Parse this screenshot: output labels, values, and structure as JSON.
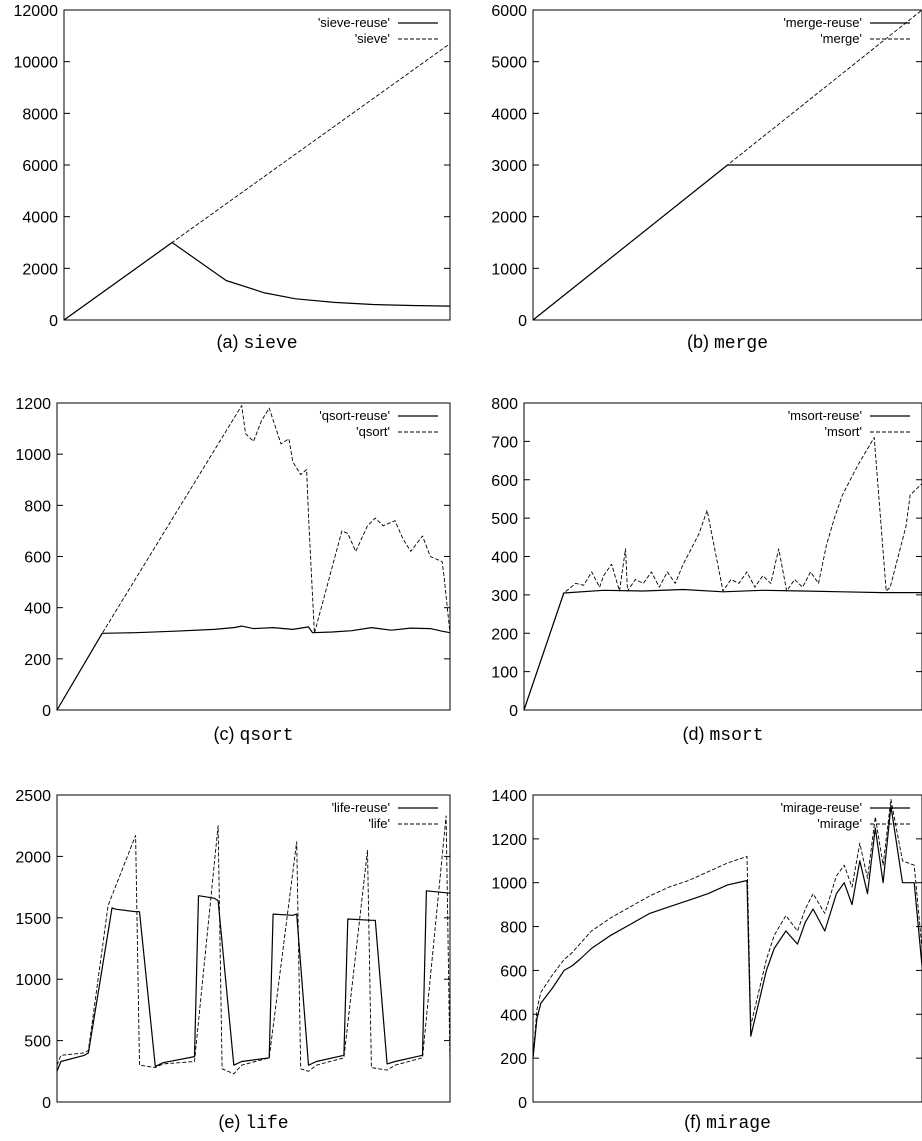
{
  "colors": {
    "background": "#ffffff",
    "axis": "#000000",
    "series": "#000000"
  },
  "chart_data": [
    {
      "id": "a",
      "type": "line",
      "caption_prefix": "(a)",
      "caption_name": "sieve",
      "title": "",
      "xlabel": "",
      "ylabel": "",
      "ylim": [
        0,
        12000
      ],
      "yticks": [
        "0",
        "2000",
        "4000",
        "6000",
        "8000",
        "10000",
        "12000"
      ],
      "xlim": [
        0,
        1
      ],
      "grid": false,
      "legend_position": "top-right",
      "series": [
        {
          "name": "'sieve-reuse'",
          "style": "solid",
          "x": [
            0,
            0.28,
            0.42,
            0.52,
            0.6,
            0.7,
            0.8,
            0.9,
            1.0
          ],
          "y": [
            0,
            3000,
            1530,
            1050,
            820,
            680,
            600,
            560,
            540
          ]
        },
        {
          "name": "'sieve'",
          "style": "dashed",
          "x": [
            0,
            0.28,
            1.0
          ],
          "y": [
            0,
            3000,
            10700
          ]
        }
      ]
    },
    {
      "id": "b",
      "type": "line",
      "caption_prefix": "(b)",
      "caption_name": "merge",
      "title": "",
      "xlabel": "",
      "ylabel": "",
      "ylim": [
        0,
        6000
      ],
      "yticks": [
        "0",
        "1000",
        "2000",
        "3000",
        "4000",
        "5000",
        "6000"
      ],
      "xlim": [
        0,
        1
      ],
      "grid": false,
      "legend_position": "top-right",
      "series": [
        {
          "name": "'merge-reuse'",
          "style": "solid",
          "x": [
            0,
            0.5,
            1.0
          ],
          "y": [
            0,
            3000,
            3000
          ]
        },
        {
          "name": "'merge'",
          "style": "dashed",
          "x": [
            0,
            1.0
          ],
          "y": [
            0,
            6000
          ]
        }
      ]
    },
    {
      "id": "c",
      "type": "line",
      "caption_prefix": "(c)",
      "caption_name": "qsort",
      "title": "",
      "xlabel": "",
      "ylabel": "",
      "ylim": [
        0,
        1200
      ],
      "yticks": [
        "0",
        "200",
        "400",
        "600",
        "800",
        "1000",
        "1200"
      ],
      "xlim": [
        0,
        1
      ],
      "grid": false,
      "legend_position": "top-right",
      "series": [
        {
          "name": "'qsort-reuse'",
          "style": "solid",
          "x": [
            0,
            0.115,
            0.2,
            0.3,
            0.4,
            0.45,
            0.47,
            0.5,
            0.55,
            0.6,
            0.64,
            0.65,
            0.7,
            0.75,
            0.8,
            0.85,
            0.9,
            0.95,
            0.98,
            1.0
          ],
          "y": [
            0,
            300,
            302,
            308,
            315,
            322,
            328,
            318,
            322,
            315,
            325,
            302,
            305,
            310,
            322,
            312,
            320,
            318,
            308,
            302
          ]
        },
        {
          "name": "'qsort'",
          "style": "dashed",
          "x": [
            0,
            0.115,
            0.47,
            0.48,
            0.5,
            0.52,
            0.54,
            0.57,
            0.59,
            0.6,
            0.62,
            0.635,
            0.64,
            0.655,
            0.725,
            0.74,
            0.76,
            0.79,
            0.81,
            0.83,
            0.86,
            0.88,
            0.9,
            0.93,
            0.95,
            0.98,
            0.985,
            1.0
          ],
          "y": [
            0,
            300,
            1190,
            1080,
            1050,
            1130,
            1180,
            1040,
            1060,
            970,
            920,
            940,
            760,
            300,
            700,
            690,
            620,
            720,
            750,
            720,
            740,
            670,
            620,
            680,
            600,
            580,
            520,
            300
          ]
        }
      ]
    },
    {
      "id": "d",
      "type": "line",
      "caption_prefix": "(d)",
      "caption_name": "msort",
      "title": "",
      "xlabel": "",
      "ylabel": "",
      "ylim": [
        0,
        800
      ],
      "yticks": [
        "0",
        "100",
        "200",
        "300",
        "400",
        "500",
        "600",
        "700",
        "800"
      ],
      "xlim": [
        0,
        1
      ],
      "grid": false,
      "legend_position": "top-right",
      "series": [
        {
          "name": "'msort-reuse'",
          "style": "solid",
          "x": [
            0,
            0.1,
            0.2,
            0.3,
            0.4,
            0.5,
            0.6,
            0.7,
            0.8,
            0.9,
            1.0
          ],
          "y": [
            0,
            305,
            312,
            310,
            314,
            308,
            312,
            310,
            308,
            306,
            306
          ]
        },
        {
          "name": "'msort'",
          "style": "dashed",
          "x": [
            0,
            0.1,
            0.13,
            0.15,
            0.17,
            0.19,
            0.2,
            0.22,
            0.24,
            0.255,
            0.26,
            0.28,
            0.3,
            0.32,
            0.34,
            0.36,
            0.38,
            0.4,
            0.42,
            0.44,
            0.46,
            0.5,
            0.52,
            0.54,
            0.56,
            0.58,
            0.6,
            0.62,
            0.64,
            0.66,
            0.68,
            0.7,
            0.72,
            0.74,
            0.76,
            0.78,
            0.8,
            0.84,
            0.88,
            0.91,
            0.92,
            0.96,
            0.97,
            1.0
          ],
          "y": [
            0,
            305,
            330,
            325,
            360,
            320,
            350,
            380,
            310,
            420,
            310,
            340,
            330,
            360,
            320,
            360,
            330,
            380,
            420,
            460,
            520,
            310,
            340,
            330,
            360,
            320,
            350,
            330,
            420,
            310,
            340,
            320,
            360,
            330,
            430,
            500,
            560,
            640,
            710,
            310,
            320,
            480,
            560,
            590
          ]
        }
      ]
    },
    {
      "id": "e",
      "type": "line",
      "caption_prefix": "(e)",
      "caption_name": "life",
      "title": "",
      "xlabel": "",
      "ylabel": "",
      "ylim": [
        0,
        2500
      ],
      "yticks": [
        "0",
        "500",
        "1000",
        "1500",
        "2000",
        "2500"
      ],
      "xlim": [
        0,
        1
      ],
      "grid": false,
      "legend_position": "top-right",
      "series": [
        {
          "name": "'life-reuse'",
          "style": "solid",
          "x": [
            0,
            0.01,
            0.07,
            0.08,
            0.14,
            0.15,
            0.2,
            0.21,
            0.25,
            0.27,
            0.35,
            0.36,
            0.4,
            0.41,
            0.45,
            0.47,
            0.54,
            0.55,
            0.6,
            0.61,
            0.64,
            0.66,
            0.73,
            0.74,
            0.8,
            0.81,
            0.84,
            0.86,
            0.93,
            0.94,
            1.0
          ],
          "y": [
            250,
            330,
            380,
            400,
            1580,
            1570,
            1550,
            1550,
            290,
            320,
            370,
            1680,
            1660,
            1640,
            300,
            330,
            360,
            1530,
            1520,
            1530,
            300,
            330,
            380,
            1490,
            1480,
            1480,
            310,
            330,
            380,
            1720,
            1700
          ]
        },
        {
          "name": "'life'",
          "style": "dashed",
          "x": [
            0,
            0.01,
            0.07,
            0.08,
            0.13,
            0.2,
            0.21,
            0.25,
            0.27,
            0.35,
            0.41,
            0.42,
            0.45,
            0.47,
            0.54,
            0.61,
            0.62,
            0.64,
            0.66,
            0.73,
            0.79,
            0.8,
            0.84,
            0.86,
            0.93,
            0.99,
            1.0
          ],
          "y": [
            300,
            380,
            400,
            420,
            1600,
            2170,
            300,
            280,
            310,
            330,
            2250,
            270,
            230,
            300,
            360,
            2120,
            270,
            250,
            300,
            360,
            2050,
            280,
            260,
            300,
            360,
            2330,
            300
          ]
        }
      ]
    },
    {
      "id": "f",
      "type": "line",
      "caption_prefix": "(f)",
      "caption_name": "mirage",
      "title": "",
      "xlabel": "",
      "ylabel": "",
      "ylim": [
        0,
        1400
      ],
      "yticks": [
        "0",
        "200",
        "400",
        "600",
        "800",
        "1000",
        "1200",
        "1400"
      ],
      "xlim": [
        0,
        1
      ],
      "grid": false,
      "legend_position": "top-right",
      "series": [
        {
          "name": "'mirage-reuse'",
          "style": "solid",
          "x": [
            0,
            0.01,
            0.02,
            0.05,
            0.08,
            0.1,
            0.12,
            0.15,
            0.2,
            0.25,
            0.3,
            0.35,
            0.4,
            0.45,
            0.5,
            0.55,
            0.56,
            0.6,
            0.62,
            0.65,
            0.68,
            0.7,
            0.72,
            0.75,
            0.78,
            0.8,
            0.82,
            0.84,
            0.86,
            0.88,
            0.9,
            0.92,
            0.95,
            0.98,
            1.0
          ],
          "y": [
            200,
            380,
            450,
            520,
            600,
            620,
            650,
            700,
            760,
            810,
            860,
            890,
            920,
            950,
            990,
            1010,
            300,
            600,
            700,
            780,
            720,
            820,
            880,
            780,
            950,
            1000,
            900,
            1100,
            950,
            1250,
            1000,
            1350,
            1000,
            1000,
            620
          ]
        },
        {
          "name": "'mirage'",
          "style": "dashed",
          "x": [
            0,
            0.01,
            0.02,
            0.05,
            0.08,
            0.1,
            0.12,
            0.15,
            0.2,
            0.25,
            0.3,
            0.35,
            0.4,
            0.45,
            0.5,
            0.55,
            0.56,
            0.6,
            0.62,
            0.65,
            0.68,
            0.7,
            0.72,
            0.75,
            0.78,
            0.8,
            0.82,
            0.84,
            0.86,
            0.88,
            0.9,
            0.92,
            0.95,
            0.98,
            1.0
          ],
          "y": [
            200,
            420,
            500,
            580,
            650,
            680,
            720,
            780,
            840,
            890,
            940,
            980,
            1010,
            1050,
            1090,
            1120,
            350,
            650,
            760,
            850,
            780,
            880,
            950,
            860,
            1030,
            1080,
            980,
            1180,
            1020,
            1300,
            1080,
            1380,
            1100,
            1080,
            700
          ]
        }
      ]
    }
  ]
}
